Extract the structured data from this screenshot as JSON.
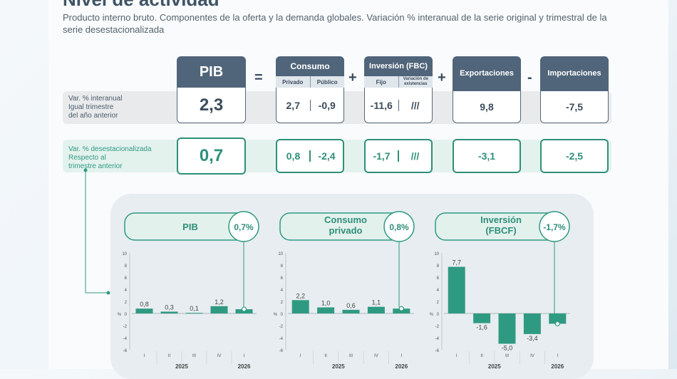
{
  "title": "Nivel de actividad",
  "subtitle": "Producto interno bruto. Componentes de la oferta y la demanda globales. Variación % interanual de la serie original  y trimestral de la serie desestacionalizada",
  "rows": {
    "interanual": [
      "Var. % interanual",
      "Igual trimestre",
      "del año anterior"
    ],
    "desestacionalizada": [
      "Var. % desestacionalizada",
      "Respecto al",
      "trimestre anterior"
    ]
  },
  "operators": [
    "=",
    "+",
    "+",
    "-"
  ],
  "headers": {
    "pib": "PIB",
    "consumo": "Consumo",
    "consumo_sub": [
      "Privado",
      "Público"
    ],
    "inversion": "Inversión (FBC)",
    "inversion_sub": [
      "Fijo",
      "Variación de existencias"
    ],
    "exportaciones": "Exportaciones",
    "importaciones": "Importaciones"
  },
  "values_interanual": {
    "pib": "2,3",
    "consumo_privado": "2,7",
    "consumo_publico": "-0,9",
    "inversion_fijo": "-11,6",
    "inversion_existencias": "///",
    "exportaciones": "9,8",
    "importaciones": "-7,5"
  },
  "values_desest": {
    "pib": "0,7",
    "consumo_privado": "0,8",
    "consumo_publico": "-2,4",
    "inversion_fijo": "-1,7",
    "inversion_existencias": "///",
    "exportaciones": "-3,1",
    "importaciones": "-2,5"
  },
  "colors": {
    "dark": "#50657a",
    "accent": "#2f8f7a",
    "bar": "#2f9a82"
  },
  "chart_data": [
    {
      "type": "bar",
      "title": "PIB",
      "badge": "0,7%",
      "categories": [
        "I",
        "II",
        "III",
        "IV",
        "I"
      ],
      "years": [
        {
          "label": "2025",
          "span": 4
        },
        {
          "label": "2026",
          "span": 1
        }
      ],
      "values": [
        0.8,
        0.3,
        0.1,
        1.2,
        0.7
      ],
      "labels": [
        "0,8",
        "0,3",
        "0,1",
        "1,2",
        ""
      ],
      "ylabel": "%",
      "ylim": [
        -6,
        10
      ],
      "yticks": [
        10,
        8,
        6,
        4,
        2,
        0,
        -2,
        -4,
        -6
      ]
    },
    {
      "type": "bar",
      "title": "Consumo privado",
      "title_lines": [
        "Consumo",
        "privado"
      ],
      "badge": "0,8%",
      "categories": [
        "I",
        "II",
        "III",
        "IV",
        "I"
      ],
      "years": [
        {
          "label": "2025",
          "span": 4
        },
        {
          "label": "2026",
          "span": 1
        }
      ],
      "values": [
        2.2,
        1.0,
        0.6,
        1.1,
        0.8
      ],
      "labels": [
        "2,2",
        "1,0",
        "0,6",
        "1,1",
        ""
      ],
      "ylabel": "%",
      "ylim": [
        -6,
        10
      ],
      "yticks": [
        10,
        8,
        6,
        4,
        2,
        0,
        -2,
        -4,
        -6
      ]
    },
    {
      "type": "bar",
      "title": "Inversión (FBCF)",
      "title_lines": [
        "Inversión",
        "(FBCF)"
      ],
      "badge": "-1,7%",
      "categories": [
        "I",
        "II",
        "III",
        "IV",
        "I"
      ],
      "years": [
        {
          "label": "2025",
          "span": 4
        },
        {
          "label": "2026",
          "span": 1
        }
      ],
      "values": [
        7.7,
        -1.6,
        -5.0,
        -3.4,
        -1.7
      ],
      "labels": [
        "7,7",
        "-1,6",
        "-5,0",
        "-3,4",
        ""
      ],
      "ylabel": "%",
      "ylim": [
        -6,
        10
      ],
      "yticks": [
        10,
        8,
        6,
        4,
        2,
        0,
        -2,
        -4,
        -6
      ]
    }
  ]
}
